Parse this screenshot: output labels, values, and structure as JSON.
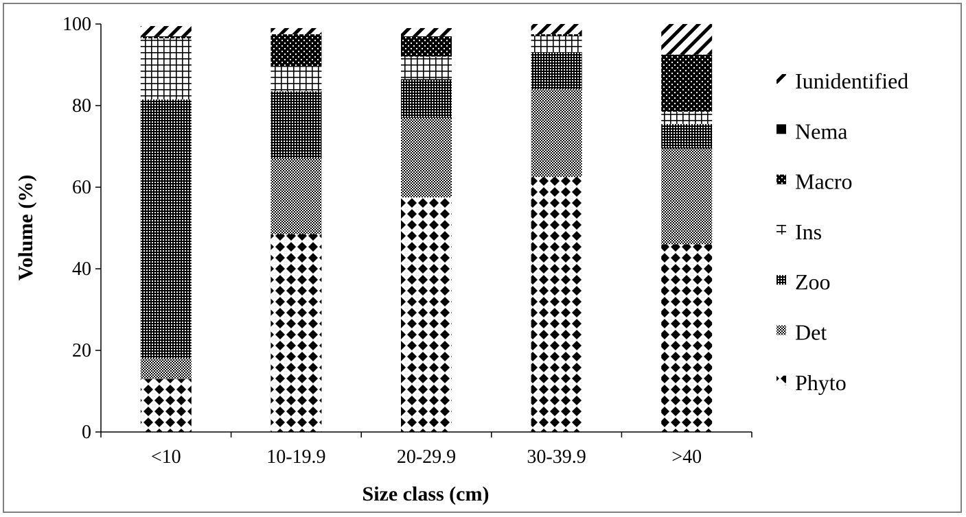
{
  "chart_data": {
    "type": "bar",
    "stacked": true,
    "title": "",
    "xlabel": "Size class (cm)",
    "ylabel": "Volume (%)",
    "ylim": [
      0,
      100
    ],
    "yticks": [
      "0",
      "20",
      "40",
      "60",
      "80",
      "100"
    ],
    "grid": false,
    "legend_position": "right",
    "categories": [
      "<10",
      "10-19.9",
      "20-29.9",
      "30-39.9",
      ">40"
    ],
    "series": [
      {
        "name": "Phyto",
        "values": [
          13,
          48.5,
          57.5,
          62.5,
          46
        ],
        "pattern": "diamonds"
      },
      {
        "name": "Det",
        "values": [
          5,
          18.5,
          19.5,
          21.5,
          23.5
        ],
        "pattern": "dense-dots"
      },
      {
        "name": "Zoo",
        "values": [
          63.5,
          16.5,
          9.5,
          9,
          6
        ],
        "pattern": "fine-grid"
      },
      {
        "name": "Ins",
        "values": [
          15,
          6,
          5.5,
          4,
          3
        ],
        "pattern": "plus-grid"
      },
      {
        "name": "Macro",
        "values": [
          0.5,
          8,
          5,
          0.5,
          14
        ],
        "pattern": "checker-dots"
      },
      {
        "name": "Nema",
        "values": [
          0,
          0,
          0,
          0,
          0
        ],
        "pattern": "solid-square"
      },
      {
        "name": "Iunidentified",
        "values": [
          2.5,
          1.5,
          2,
          2.5,
          7.5
        ],
        "pattern": "diagonal"
      }
    ]
  }
}
